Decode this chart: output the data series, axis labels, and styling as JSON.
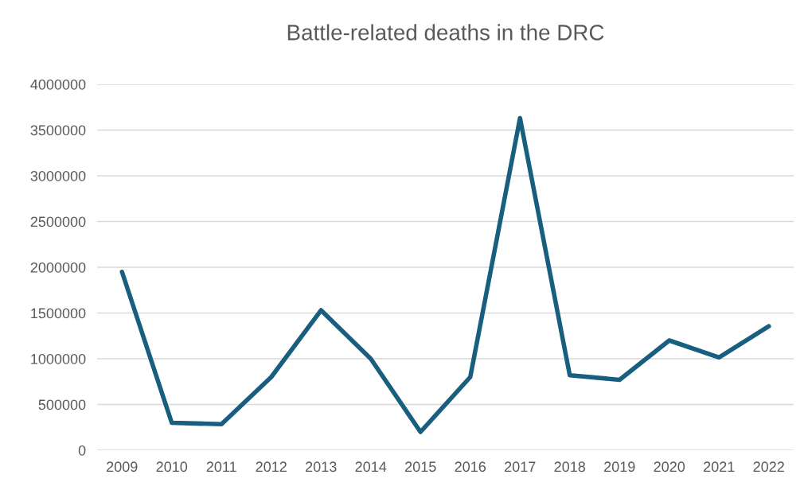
{
  "chart_data": {
    "type": "line",
    "title": "Battle-related deaths in the DRC",
    "categories": [
      "2009",
      "2010",
      "2011",
      "2012",
      "2013",
      "2014",
      "2015",
      "2016",
      "2017",
      "2018",
      "2019",
      "2020",
      "2021",
      "2022"
    ],
    "series": [
      {
        "color": "#185e7f",
        "values": [
          1950000,
          300000,
          285000,
          800000,
          1530000,
          1000000,
          200000,
          800000,
          3630000,
          820000,
          770000,
          1200000,
          1015000,
          1355000
        ]
      }
    ],
    "ylim": [
      0,
      4000000
    ],
    "yticks": [
      0,
      500000,
      1000000,
      1500000,
      2000000,
      2500000,
      3000000,
      3500000,
      4000000
    ],
    "grid": "y",
    "legend": false,
    "marker": "none",
    "line_style": "solid"
  }
}
